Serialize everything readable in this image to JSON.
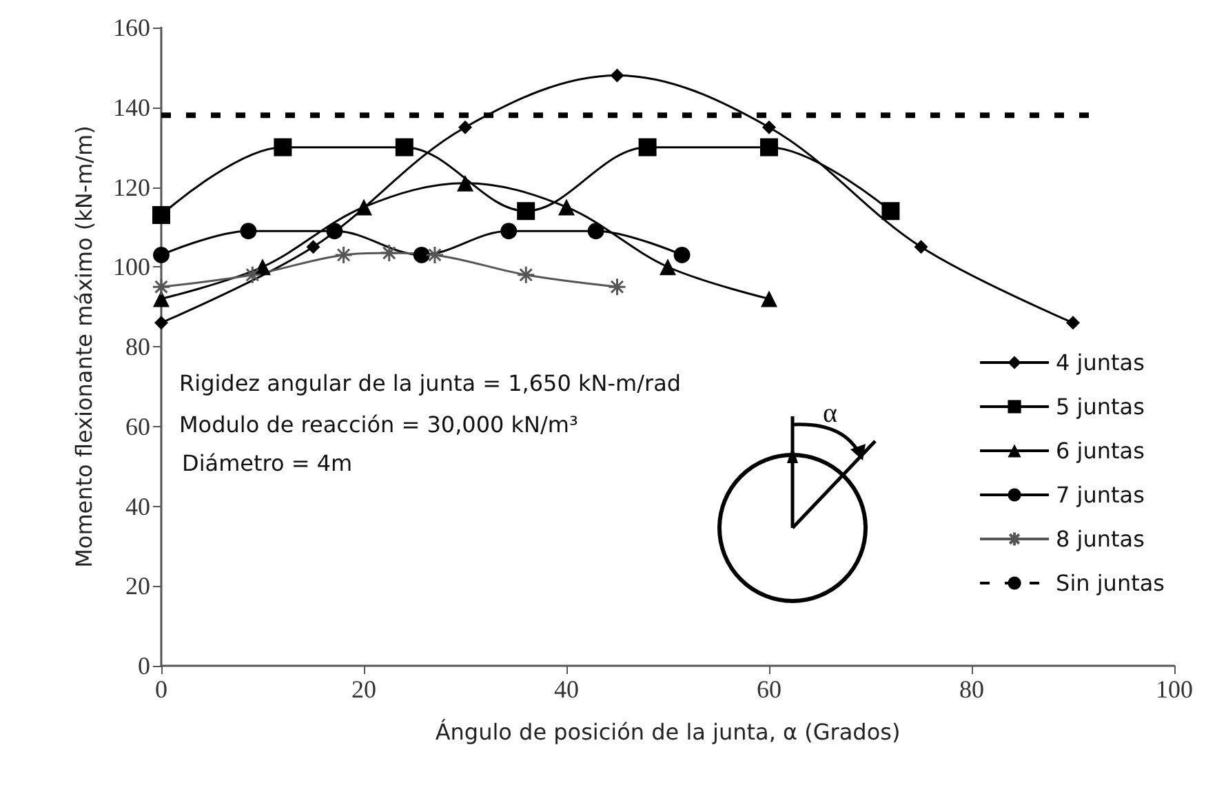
{
  "chart_data": {
    "type": "line",
    "xlabel": "Ángulo de posición de la junta, α (Grados)",
    "ylabel": "Momento flexionante máximo (kN-m/m)",
    "xlim": [
      0,
      100
    ],
    "xticks": [
      0,
      20,
      40,
      60,
      80,
      100
    ],
    "ylim": [
      0,
      160
    ],
    "yticks": [
      0,
      20,
      40,
      60,
      80,
      100,
      120,
      140,
      160
    ],
    "grid": false,
    "legend": "right",
    "annotations": [
      "Rigidez angular de la junta = 1,650 kN-m/rad",
      "Modulo de reacción = 30,000 kN/m³",
      "Diámetro = 4m",
      "α"
    ],
    "series": [
      {
        "name": "4 juntas",
        "color": "#000000",
        "marker": "diamond",
        "x": [
          0,
          15,
          30,
          45,
          60,
          75,
          90
        ],
        "values": [
          86,
          105,
          135,
          148,
          135,
          105,
          86
        ]
      },
      {
        "name": "5 juntas",
        "color": "#000000",
        "marker": "square",
        "x": [
          0,
          12,
          24,
          36,
          48,
          60,
          72
        ],
        "values": [
          113,
          130,
          130,
          114,
          130,
          130,
          114
        ]
      },
      {
        "name": "6 juntas",
        "color": "#000000",
        "marker": "triangle",
        "x": [
          0,
          10,
          20,
          30,
          40,
          50,
          60
        ],
        "values": [
          92,
          100,
          115,
          121,
          115,
          100,
          92
        ]
      },
      {
        "name": "7 juntas",
        "color": "#000000",
        "marker": "circle",
        "x": [
          0,
          8.6,
          17.1,
          25.7,
          34.3,
          42.9,
          51.4
        ],
        "values": [
          103,
          109,
          109,
          103,
          109,
          109,
          103
        ]
      },
      {
        "name": "8 juntas",
        "color": "#555555",
        "marker": "cross",
        "x": [
          0,
          9,
          18,
          22.5,
          27,
          36,
          45
        ],
        "values": [
          95,
          98,
          103,
          103.5,
          103,
          98,
          95
        ]
      },
      {
        "name": "Sin juntas",
        "color": "#000000",
        "marker": "none",
        "line_style": "dashed",
        "x": [
          0,
          92
        ],
        "values": [
          138,
          138
        ]
      }
    ]
  }
}
